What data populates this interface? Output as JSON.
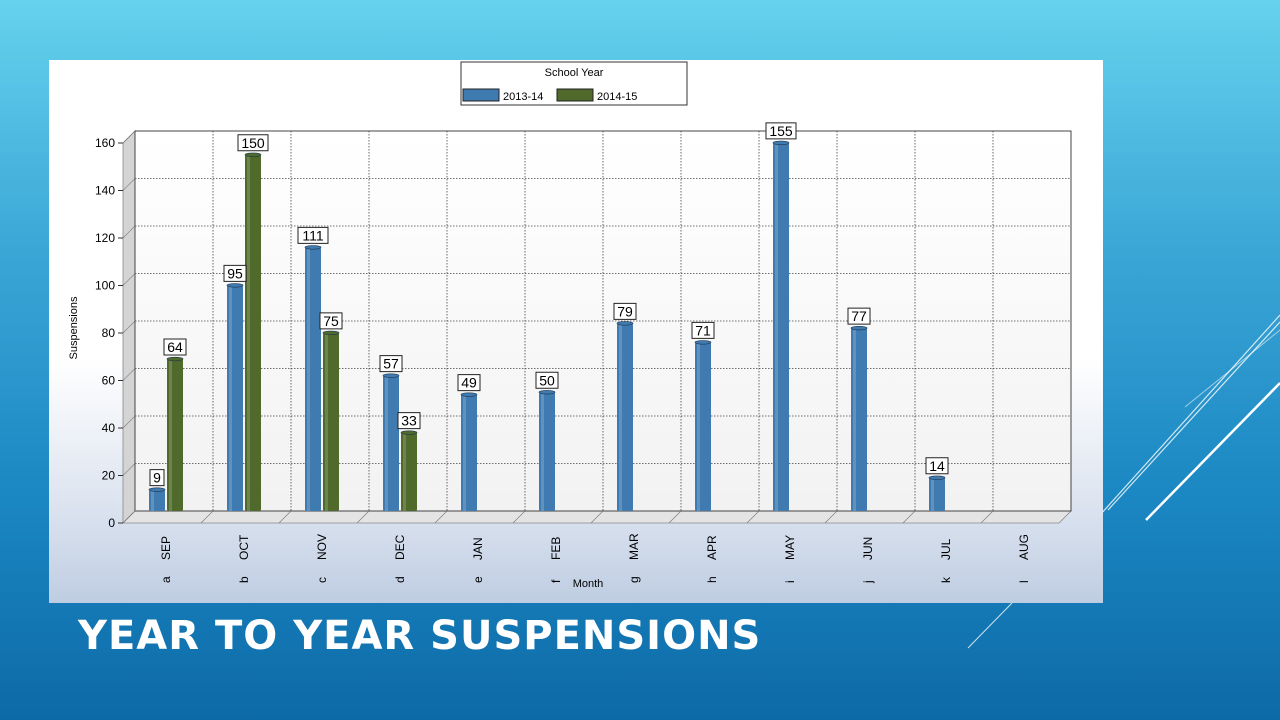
{
  "slide": {
    "title": "YEAR TO YEAR SUSPENSIONS"
  },
  "chart_data": {
    "type": "bar",
    "legend_title": "School Year",
    "legend_position": "top-center",
    "xlabel": "Month",
    "ylabel": "Suspensions",
    "ylim": [
      0,
      160
    ],
    "yticks": [
      0,
      20,
      40,
      60,
      80,
      100,
      120,
      140,
      160
    ],
    "grid": true,
    "categories": [
      "SEP",
      "OCT",
      "NOV",
      "DEC",
      "JAN",
      "FEB",
      "MAR",
      "APR",
      "MAY",
      "JUN",
      "JUL",
      "AUG"
    ],
    "category_codes": [
      "a",
      "b",
      "c",
      "d",
      "e",
      "f",
      "g",
      "h",
      "i",
      "j",
      "k",
      "l"
    ],
    "series": [
      {
        "name": "2013-14",
        "color": "#3f7bb0",
        "values": [
          9,
          95,
          111,
          57,
          49,
          50,
          79,
          71,
          155,
          77,
          14,
          null
        ]
      },
      {
        "name": "2014-15",
        "color": "#4f6a2a",
        "values": [
          64,
          150,
          75,
          33,
          null,
          null,
          null,
          null,
          null,
          null,
          null,
          null
        ]
      }
    ]
  }
}
